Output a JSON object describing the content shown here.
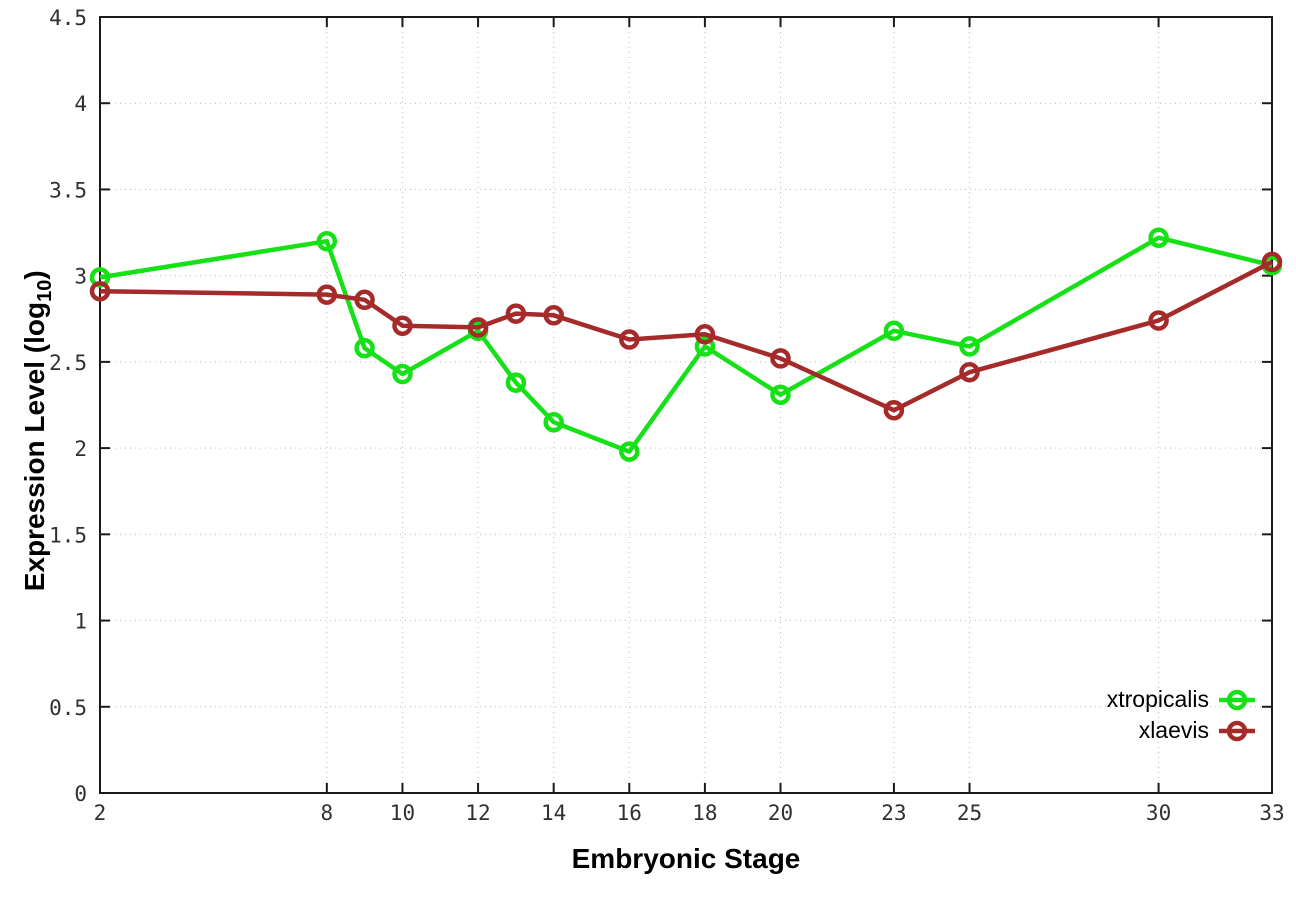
{
  "chart_data": {
    "type": "line",
    "title": "",
    "xlabel": "Embryonic Stage",
    "ylabel": "Expression Level (log10)",
    "ylabel_parts": {
      "main": "Expression Level (log",
      "sub": "10",
      "end": ")"
    },
    "x": [
      2,
      8,
      9,
      10,
      12,
      13,
      14,
      16,
      18,
      20,
      23,
      25,
      30,
      33
    ],
    "series": [
      {
        "name": "xtropicalis",
        "color": "#16e016",
        "values": [
          2.99,
          3.2,
          2.58,
          2.43,
          2.68,
          2.38,
          2.15,
          1.98,
          2.59,
          2.31,
          2.68,
          2.59,
          3.22,
          3.06
        ]
      },
      {
        "name": "xlaevis",
        "color": "#a52a2a",
        "values": [
          2.91,
          2.89,
          2.86,
          2.71,
          2.7,
          2.78,
          2.77,
          2.63,
          2.66,
          2.52,
          2.22,
          2.44,
          2.74,
          3.08
        ]
      }
    ],
    "xticks": [
      2,
      8,
      10,
      12,
      14,
      16,
      18,
      20,
      23,
      25,
      30,
      33
    ],
    "yticks": [
      0,
      0.5,
      1,
      1.5,
      2,
      2.5,
      3,
      3.5,
      4,
      4.5
    ],
    "xlim": [
      2,
      33
    ],
    "ylim": [
      0,
      4.5
    ],
    "grid": true,
    "legend_position": "bottom-right",
    "marker": "open-circle",
    "colors": {
      "axis": "#1a1a1a",
      "grid": "#bdbdbd",
      "tick_text": "#303030",
      "background": "#ffffff"
    }
  }
}
